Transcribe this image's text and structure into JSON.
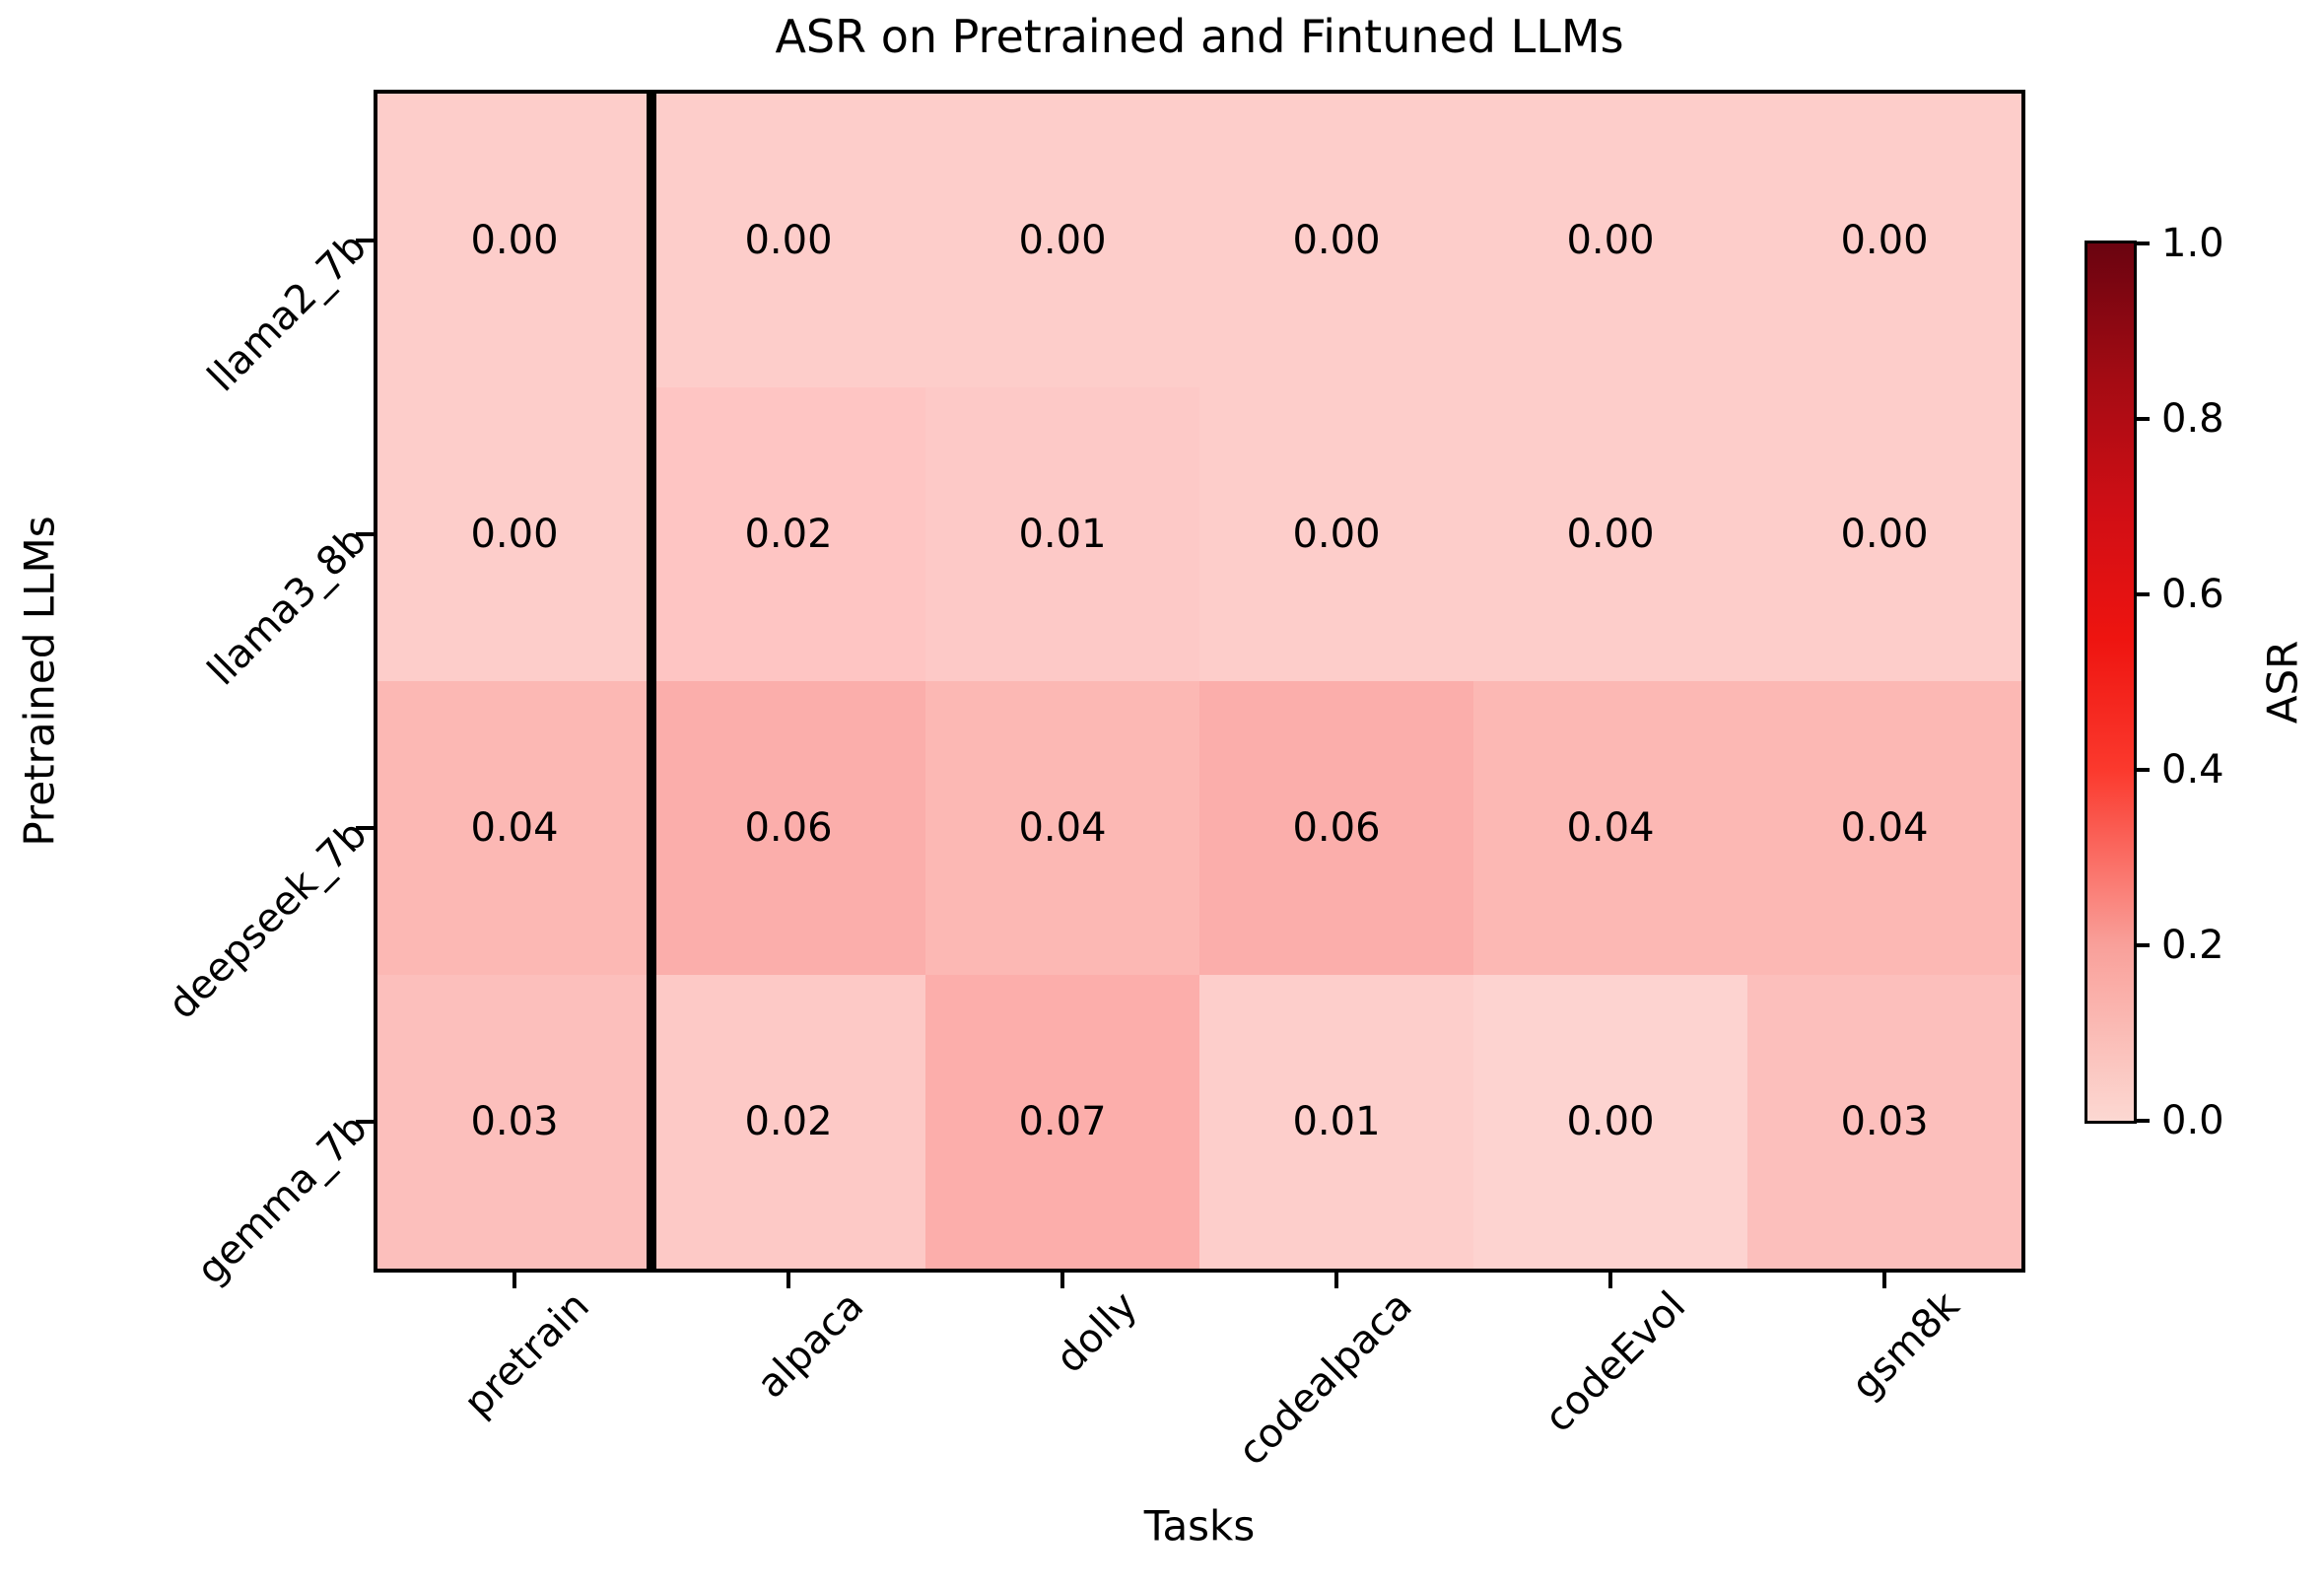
{
  "chart_data": {
    "type": "heatmap",
    "title": "ASR on Pretrained and Fintuned LLMs",
    "xlabel": "Tasks",
    "ylabel": "Pretrained LLMs",
    "x_categories": [
      "pretrain",
      "alpaca",
      "dolly",
      "codealpaca",
      "codeEvol",
      "gsm8k"
    ],
    "y_categories": [
      "llama2_7b",
      "llama3_8b",
      "deepseek_7b",
      "gemma_7b"
    ],
    "values": [
      [
        0.0,
        0.0,
        0.0,
        0.0,
        0.0,
        0.0
      ],
      [
        0.0,
        0.02,
        0.01,
        0.0,
        0.0,
        0.0
      ],
      [
        0.04,
        0.06,
        0.04,
        0.06,
        0.04,
        0.04
      ],
      [
        0.03,
        0.02,
        0.07,
        0.01,
        0.0,
        0.03
      ]
    ],
    "value_decimals": 2,
    "cell_colors": [
      [
        "#fdcdca",
        "#fdcdca",
        "#fdcdca",
        "#fdcdca",
        "#fdcdca",
        "#fdcdca"
      ],
      [
        "#fdcdca",
        "#fec5c3",
        "#fdc9c7",
        "#fdcdca",
        "#fdcdca",
        "#fdcdca"
      ],
      [
        "#fcb8b4",
        "#fbaeab",
        "#fcb8b4",
        "#fbaeab",
        "#fcb8b4",
        "#fcb8b4"
      ],
      [
        "#fcbfbc",
        "#fdc9c6",
        "#fcaeab",
        "#fdcecb",
        "#fdd3d0",
        "#fcbfbc"
      ]
    ],
    "separator_after_column": "pretrain",
    "grid_off": true,
    "colorbar": {
      "label": "ASR",
      "min": 0.0,
      "max": 1.0,
      "tick_labels": [
        "1.0",
        "0.8",
        "0.6",
        "0.4",
        "0.2",
        "0.0"
      ],
      "gradient_bottom_to_top": [
        {
          "pos": 0.0,
          "color": "#fcd8d2"
        },
        {
          "pos": 0.2,
          "color": "#f9a09a"
        },
        {
          "pos": 0.4,
          "color": "#fb392d"
        },
        {
          "pos": 0.55,
          "color": "#ee1410"
        },
        {
          "pos": 0.7,
          "color": "#cf0e15"
        },
        {
          "pos": 0.85,
          "color": "#a20b13"
        },
        {
          "pos": 1.0,
          "color": "#6a0310"
        }
      ]
    }
  }
}
